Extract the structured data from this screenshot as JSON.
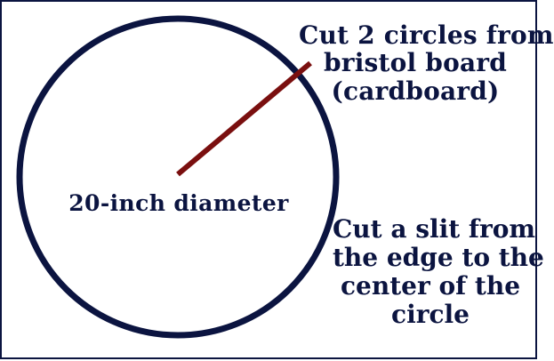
{
  "diagram": {
    "center_label": "20-inch diameter",
    "top_note_lines": [
      "Cut 2 circles from",
      "bristol board",
      "(cardboard)"
    ],
    "bottom_note_lines": [
      "Cut a slit from",
      "the edge to the",
      "center of the",
      "circle"
    ]
  },
  "colors": {
    "circle": "#0b1440",
    "slit": "#7a0f0f",
    "text": "#0b1440",
    "border": "#0b1440",
    "background": "#ffffff"
  }
}
